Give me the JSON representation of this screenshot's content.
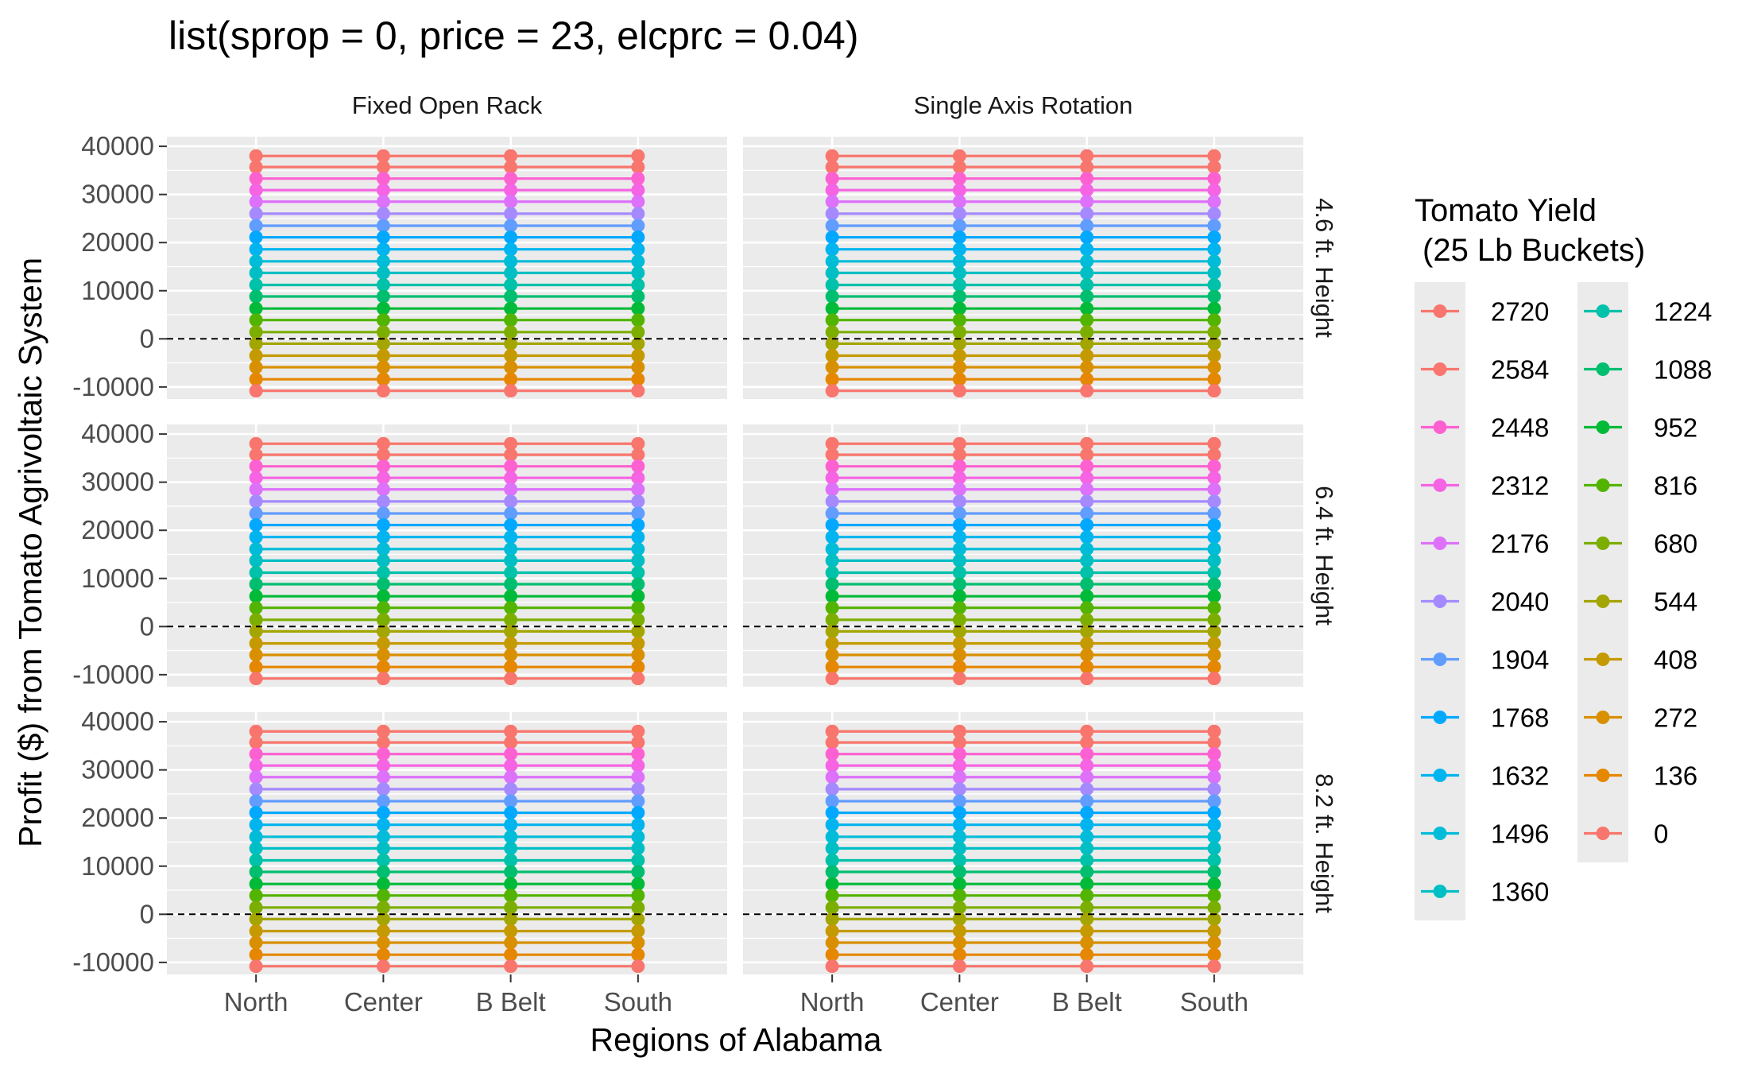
{
  "chart_data": {
    "type": "line",
    "title": "list(sprop = 0, price = 23, elcprc = 0.04)",
    "xlabel": "Regions of Alabama",
    "ylabel": "Profit ($) from Tomato Agrivoltaic System",
    "categories": [
      "North",
      "Center",
      "B Belt",
      "South"
    ],
    "facet_columns": [
      "Fixed Open Rack",
      "Single Axis Rotation"
    ],
    "facet_rows": [
      "4.6 ft. Height",
      "6.4 ft. Height",
      "8.2 ft. Height"
    ],
    "ylim": [
      -12500,
      42000
    ],
    "yticks": [
      -10000,
      0,
      10000,
      20000,
      30000,
      40000
    ],
    "reference_line": 0,
    "grid": true,
    "legend": {
      "title_line1": "Tomato Yield",
      "title_line2": "(25 Lb Buckets)",
      "placement": "right",
      "columns": 2
    },
    "series": [
      {
        "name": "2720",
        "color": "#F8766D",
        "y": 38000
      },
      {
        "name": "2584",
        "color": "#F8766D",
        "y": 35700
      },
      {
        "name": "2448",
        "color": "#FD61D1",
        "y": 33300
      },
      {
        "name": "2312",
        "color": "#F663E3",
        "y": 30900
      },
      {
        "name": "2176",
        "color": "#DD71FA",
        "y": 28500
      },
      {
        "name": "2040",
        "color": "#A58AFF",
        "y": 26000
      },
      {
        "name": "1904",
        "color": "#619CFF",
        "y": 23500
      },
      {
        "name": "1768",
        "color": "#00A9FF",
        "y": 21100
      },
      {
        "name": "1632",
        "color": "#00B4EF",
        "y": 18600
      },
      {
        "name": "1496",
        "color": "#00BCD8",
        "y": 16100
      },
      {
        "name": "1360",
        "color": "#00BFC4",
        "y": 13700
      },
      {
        "name": "1224",
        "color": "#00C1AA",
        "y": 11200
      },
      {
        "name": "1088",
        "color": "#00BE70",
        "y": 8800
      },
      {
        "name": "952",
        "color": "#00BA38",
        "y": 6300
      },
      {
        "name": "816",
        "color": "#53B400",
        "y": 3900
      },
      {
        "name": "680",
        "color": "#7CAE00",
        "y": 1400
      },
      {
        "name": "544",
        "color": "#A3A500",
        "y": -1000
      },
      {
        "name": "408",
        "color": "#C49A00",
        "y": -3500
      },
      {
        "name": "272",
        "color": "#D89000",
        "y": -5900
      },
      {
        "name": "136",
        "color": "#E58700",
        "y": -8400
      },
      {
        "name": "0",
        "color": "#F8766D",
        "y": -10800
      }
    ]
  }
}
